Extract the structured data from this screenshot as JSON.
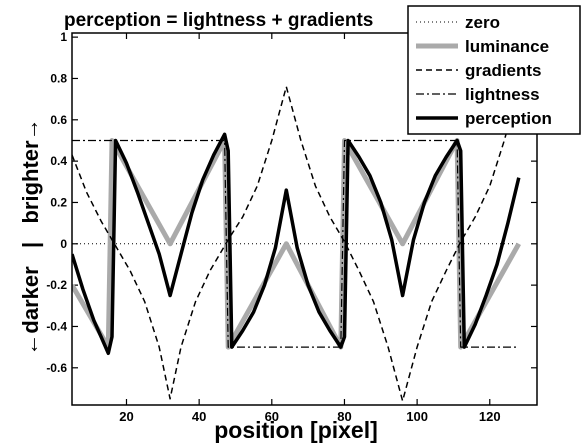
{
  "chart_data": {
    "type": "line",
    "title": "perception = lightness + gradients",
    "xlabel": "position [pixel]",
    "ylabel": "←darker   |   brighter→",
    "xlim": [
      5,
      133
    ],
    "ylim": [
      -0.78,
      1.02
    ],
    "xticks": [
      20,
      40,
      60,
      80,
      100,
      120
    ],
    "yticks": [
      -0.6,
      -0.4,
      -0.2,
      0,
      0.2,
      0.4,
      0.6,
      0.8,
      1
    ],
    "ytick_labels": [
      "-0.6",
      "-0.4",
      "-0.2",
      "0",
      "0.2",
      "0.4",
      "0.6",
      "0.8",
      "1"
    ],
    "legend_position": "top-right",
    "grid": false,
    "series": [
      {
        "name": "zero",
        "style": "dotted",
        "color": "#000000",
        "width": 1,
        "x": [
          5,
          128
        ],
        "y": [
          0,
          0
        ]
      },
      {
        "name": "luminance",
        "style": "solid",
        "color": "#aaaaaa",
        "width": 5,
        "x": [
          5,
          15,
          16,
          32,
          47,
          48,
          64,
          79,
          80,
          96,
          111,
          112,
          128
        ],
        "y": [
          -0.2,
          -0.5,
          0.5,
          0,
          0.5,
          -0.5,
          0,
          -0.5,
          0.5,
          0,
          0.5,
          -0.5,
          0
        ]
      },
      {
        "name": "gradients",
        "style": "dashed",
        "color": "#000000",
        "width": 1.5,
        "x": [
          5,
          9,
          13,
          17,
          21,
          25,
          29,
          32,
          35,
          39,
          43,
          47,
          48,
          52,
          56,
          60,
          64,
          68,
          72,
          76,
          80,
          84,
          88,
          92,
          96,
          100,
          104,
          108,
          112,
          116,
          120,
          124,
          128
        ],
        "y": [
          0.43,
          0.25,
          0.11,
          -0.01,
          -0.13,
          -0.28,
          -0.5,
          -0.75,
          -0.5,
          -0.28,
          -0.13,
          -0.01,
          0.02,
          0.13,
          0.28,
          0.5,
          0.76,
          0.5,
          0.28,
          0.13,
          0.01,
          -0.13,
          -0.28,
          -0.5,
          -0.76,
          -0.5,
          -0.28,
          -0.13,
          0.01,
          0.13,
          0.28,
          0.5,
          0.76
        ]
      },
      {
        "name": "lightness",
        "style": "dashdot",
        "color": "#000000",
        "width": 1.2,
        "x": [
          5,
          15,
          16,
          47,
          48,
          79,
          80,
          111,
          112,
          128
        ],
        "y": [
          0.5,
          0.5,
          0.5,
          0.5,
          -0.5,
          -0.5,
          0.5,
          0.5,
          -0.5,
          -0.5
        ]
      },
      {
        "name": "perception",
        "style": "solid",
        "color": "#000000",
        "width": 3.5,
        "x": [
          5,
          8,
          11,
          13,
          15,
          16,
          17,
          20,
          23,
          26,
          29,
          32,
          35,
          38,
          41,
          44,
          47,
          48,
          49,
          52,
          55,
          58,
          61,
          64,
          67,
          70,
          73,
          76,
          79,
          80,
          81,
          84,
          87,
          90,
          93,
          96,
          99,
          102,
          105,
          108,
          111,
          112,
          113,
          116,
          119,
          122,
          125,
          128
        ],
        "y": [
          -0.05,
          -0.22,
          -0.37,
          -0.45,
          -0.53,
          -0.45,
          0.5,
          0.39,
          0.25,
          0.1,
          -0.05,
          -0.25,
          -0.05,
          0.15,
          0.31,
          0.43,
          0.53,
          0.45,
          -0.5,
          -0.42,
          -0.33,
          -0.2,
          -0.02,
          0.26,
          -0.02,
          -0.2,
          -0.33,
          -0.42,
          -0.5,
          -0.45,
          0.5,
          0.42,
          0.33,
          0.2,
          0.02,
          -0.25,
          0.02,
          0.2,
          0.33,
          0.42,
          0.5,
          0.45,
          -0.5,
          -0.39,
          -0.25,
          -0.1,
          0.1,
          0.32
        ]
      }
    ]
  }
}
